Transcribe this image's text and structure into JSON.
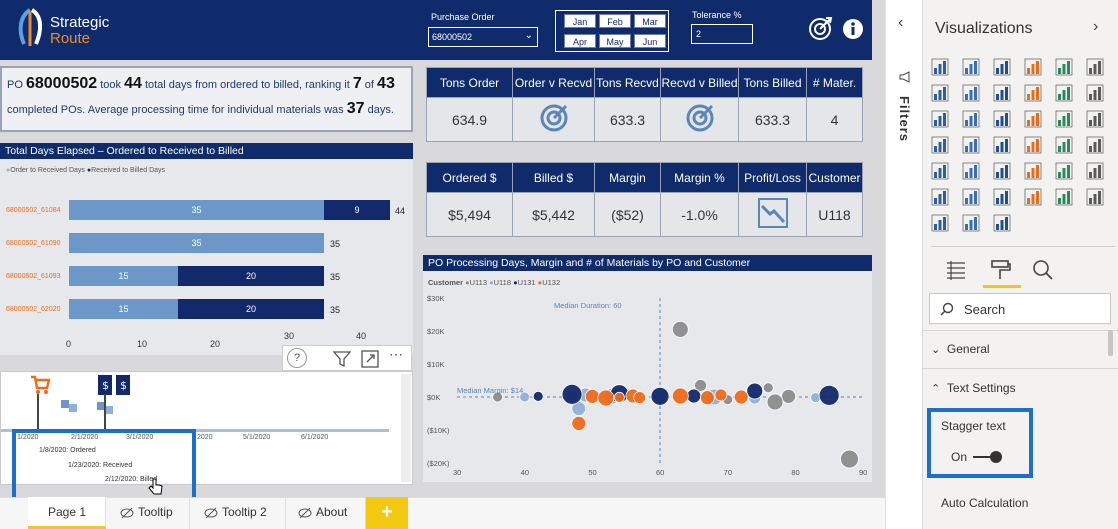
{
  "brand": {
    "line1": "Strategic",
    "line2": "Route"
  },
  "header": {
    "po_label": "Purchase Order",
    "po_value": "68000502",
    "months": [
      "Jan",
      "Feb",
      "Mar",
      "Apr",
      "May",
      "Jun"
    ],
    "tolerance_label": "Tolerance %",
    "tolerance_value": "2"
  },
  "summary": {
    "prefix": "PO",
    "po": "68000502",
    "t1": "took",
    "days": "44",
    "t2": "total days from ordered to billed, ranking it",
    "rank": "7",
    "t3": "of",
    "of": "43",
    "t4": "completed POs. Average processing time for individual materials was",
    "avg": "37",
    "t5": "days."
  },
  "kpi1": {
    "headers": [
      "Tons Order",
      "Order v Recvd",
      "Tons Recvd",
      "Recvd v Billed",
      "Tons Billed",
      "# Mater."
    ],
    "values": [
      "634.9",
      "",
      "633.3",
      "",
      "633.3",
      "4"
    ]
  },
  "kpi2": {
    "headers": [
      "Ordered $",
      "Billed $",
      "Margin",
      "Margin %",
      "Profit/Loss",
      "Customer"
    ],
    "values": [
      "$5,494",
      "$5,442",
      "($52)",
      "-1.0%",
      "",
      "U118"
    ]
  },
  "bar_chart": {
    "title": "Total Days Elapsed – Ordered to Received to Billed",
    "legend": [
      "Order to Received Days",
      "Received to Billed Days"
    ],
    "xticks": [
      "0",
      "10",
      "20",
      "30",
      "40"
    ],
    "rows": [
      {
        "label": "68000502_61084",
        "a": "35",
        "b": "9",
        "total": "44"
      },
      {
        "label": "68000502_61090",
        "a": "35",
        "b": "",
        "total": "35"
      },
      {
        "label": "68000502_61093",
        "a": "15",
        "b": "20",
        "total": "35"
      },
      {
        "label": "68000502_62020",
        "a": "15",
        "b": "20",
        "total": "35"
      }
    ]
  },
  "timeline": {
    "dates": [
      "1/2020",
      "2/1/2020",
      "3/1/2020",
      "2020",
      "5/1/2020",
      "6/1/2020"
    ],
    "tooltip": [
      "1/8/2020: Ordered",
      "1/23/2020: Received",
      "2/12/2020: Billed"
    ]
  },
  "chart_data": {
    "type": "scatter",
    "title": "PO Processing Days, Margin and # of Materials by PO and Customer",
    "legend_title": "Customer",
    "series": [
      {
        "name": "U113",
        "color": "#8c8c8c"
      },
      {
        "name": "U118",
        "color": "#8fb1d9"
      },
      {
        "name": "U131",
        "color": "#12296b"
      },
      {
        "name": "U132",
        "color": "#f06a1a"
      }
    ],
    "xticks": [
      "30",
      "40",
      "50",
      "60",
      "70",
      "80",
      "90"
    ],
    "yticks": [
      "$30K",
      "$20K",
      "$10K",
      "$0K",
      "($10K)",
      "($20K)"
    ],
    "annotations": [
      "Median Duration: 60",
      "Median Margin: $14"
    ],
    "xlim": [
      30,
      90
    ],
    "ylim": [
      -20000,
      30000
    ],
    "points": [
      {
        "s": 0,
        "x": 63,
        "y": 20500,
        "r": 8
      },
      {
        "s": 0,
        "x": 66,
        "y": 3500,
        "r": 6
      },
      {
        "s": 0,
        "x": 76,
        "y": 2800,
        "r": 5
      },
      {
        "s": 0,
        "x": 79,
        "y": 200,
        "r": 7
      },
      {
        "s": 0,
        "x": 88,
        "y": -18800,
        "r": 9
      },
      {
        "s": 0,
        "x": 47,
        "y": 200,
        "r": 6
      },
      {
        "s": 0,
        "x": 70,
        "y": -800,
        "r": 5
      },
      {
        "s": 0,
        "x": 77,
        "y": -1500,
        "r": 8
      },
      {
        "s": 0,
        "x": 36,
        "y": 0,
        "r": 5
      },
      {
        "s": 1,
        "x": 49,
        "y": 600,
        "r": 7
      },
      {
        "s": 1,
        "x": 53,
        "y": 300,
        "r": 8
      },
      {
        "s": 1,
        "x": 60,
        "y": 500,
        "r": 8
      },
      {
        "s": 1,
        "x": 68,
        "y": 0,
        "r": 8
      },
      {
        "s": 1,
        "x": 74,
        "y": -300,
        "r": 6
      },
      {
        "s": 1,
        "x": 48,
        "y": -3500,
        "r": 7
      },
      {
        "s": 1,
        "x": 40,
        "y": 0,
        "r": 5
      },
      {
        "s": 1,
        "x": 83,
        "y": -200,
        "r": 5
      },
      {
        "s": 2,
        "x": 47,
        "y": 800,
        "r": 10
      },
      {
        "s": 2,
        "x": 54,
        "y": 1000,
        "r": 9
      },
      {
        "s": 2,
        "x": 60,
        "y": 200,
        "r": 9
      },
      {
        "s": 2,
        "x": 65,
        "y": 300,
        "r": 7
      },
      {
        "s": 2,
        "x": 74,
        "y": 1800,
        "r": 8
      },
      {
        "s": 2,
        "x": 85,
        "y": 500,
        "r": 10
      },
      {
        "s": 2,
        "x": 42,
        "y": 200,
        "r": 5
      },
      {
        "s": 3,
        "x": 50,
        "y": 200,
        "r": 7
      },
      {
        "s": 3,
        "x": 52,
        "y": -300,
        "r": 8
      },
      {
        "s": 3,
        "x": 56,
        "y": 300,
        "r": 7
      },
      {
        "s": 3,
        "x": 63,
        "y": 300,
        "r": 8
      },
      {
        "s": 3,
        "x": 67,
        "y": -200,
        "r": 7
      },
      {
        "s": 3,
        "x": 69,
        "y": 600,
        "r": 6
      },
      {
        "s": 3,
        "x": 72,
        "y": 0,
        "r": 7
      },
      {
        "s": 3,
        "x": 48,
        "y": -8000,
        "r": 7
      },
      {
        "s": 3,
        "x": 57,
        "y": -200,
        "r": 6
      },
      {
        "s": 3,
        "x": 54,
        "y": -100,
        "r": 5
      }
    ]
  },
  "visual_toolbar": [
    "?",
    "filter",
    "focus",
    "more"
  ],
  "tabs": [
    "Page 1",
    "Tooltip",
    "Tooltip 2",
    "About",
    "+"
  ],
  "filters_label": "Filters",
  "viz_pane": {
    "title": "Visualizations",
    "search_placeholder": "Search",
    "sections": [
      "General",
      "Text Settings"
    ],
    "stagger_label": "Stagger text",
    "stagger_state": "On",
    "auto_calc_label": "Auto Calculation"
  }
}
